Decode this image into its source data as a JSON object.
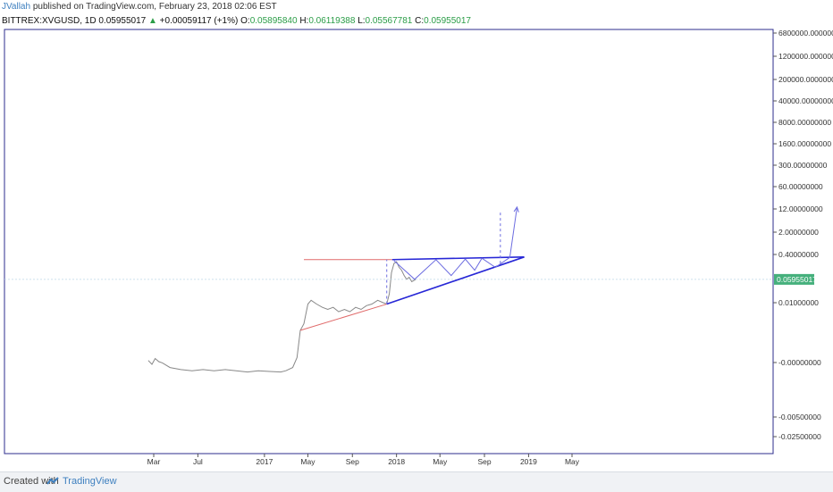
{
  "header": {
    "author": "JVallah",
    "published": "published on TradingView.com, February 23, 2018 02:06 EST",
    "symbol": "BITTREX:XVGUSD, 1D",
    "price": "0.05955017",
    "change": "+0.00059117 (+1%)",
    "o_label": "O:",
    "o_value": "0.05895840",
    "h_label": "H:",
    "h_value": "0.06119388",
    "l_label": "L:",
    "l_value": "0.05567781",
    "c_label": "C:",
    "c_value": "0.05955017"
  },
  "footer": {
    "created_with": "Created with",
    "brand": "TradingView"
  },
  "colors": {
    "price_line": "#888888",
    "triangle": "#2727d6",
    "projection": "#6c6ce0",
    "resistance": "#e06a6a",
    "current_badge": "#45b07c",
    "axis_text": "#333333"
  },
  "chart_data": {
    "type": "line",
    "title": "BITTREX:XVGUSD, 1D",
    "y_scale": "log",
    "current_price_label": "0.05955017",
    "y_tick_labels": [
      "6800000.00000000",
      "1200000.00000000",
      "200000.00000000",
      "40000.00000000",
      "8000.00000000",
      "1600.00000000",
      "300.00000000",
      "60.00000000",
      "12.00000000",
      "2.00000000",
      "0.40000000",
      "0.01000000",
      "-0.00000000",
      "-0.00500000",
      "-0.02500000"
    ],
    "x_tick_labels": [
      "Mar",
      "Jul",
      "2017",
      "May",
      "Sep",
      "2018",
      "May",
      "Sep",
      "2019",
      "May"
    ],
    "x_tick_dates": [
      "2016-03-01",
      "2016-07-01",
      "2017-01-01",
      "2017-05-01",
      "2017-09-01",
      "2018-01-01",
      "2018-05-01",
      "2018-09-01",
      "2019-01-01",
      "2019-05-01"
    ],
    "series": [
      {
        "values": [
          [
            "2016-02-15",
            0.00012
          ],
          [
            "2016-02-25",
            9e-05
          ],
          [
            "2016-03-05",
            0.00014
          ],
          [
            "2016-03-15",
            0.00011
          ],
          [
            "2016-03-25",
            0.0001
          ],
          [
            "2016-04-15",
            7e-05
          ],
          [
            "2016-05-15",
            6e-05
          ],
          [
            "2016-06-15",
            5.5e-05
          ],
          [
            "2016-07-15",
            6e-05
          ],
          [
            "2016-08-15",
            5.5e-05
          ],
          [
            "2016-09-15",
            6e-05
          ],
          [
            "2016-10-15",
            5.5e-05
          ],
          [
            "2016-11-15",
            5e-05
          ],
          [
            "2016-12-15",
            5.5e-05
          ],
          [
            "2017-01-15",
            5.2e-05
          ],
          [
            "2017-02-15",
            5e-05
          ],
          [
            "2017-03-01",
            5.5e-05
          ],
          [
            "2017-03-20",
            7e-05
          ],
          [
            "2017-04-01",
            0.00015
          ],
          [
            "2017-04-10",
            0.0012
          ],
          [
            "2017-04-20",
            0.002
          ],
          [
            "2017-05-01",
            0.009
          ],
          [
            "2017-05-10",
            0.012
          ],
          [
            "2017-05-25",
            0.009
          ],
          [
            "2017-06-10",
            0.007
          ],
          [
            "2017-06-25",
            0.006
          ],
          [
            "2017-07-10",
            0.007
          ],
          [
            "2017-07-25",
            0.005
          ],
          [
            "2017-08-10",
            0.006
          ],
          [
            "2017-08-25",
            0.005
          ],
          [
            "2017-09-10",
            0.007
          ],
          [
            "2017-09-25",
            0.006
          ],
          [
            "2017-10-10",
            0.008
          ],
          [
            "2017-10-25",
            0.009
          ],
          [
            "2017-11-10",
            0.012
          ],
          [
            "2017-11-25",
            0.01
          ],
          [
            "2017-12-05",
            0.009
          ],
          [
            "2017-12-12",
            0.02
          ],
          [
            "2017-12-18",
            0.1
          ],
          [
            "2017-12-25",
            0.2
          ],
          [
            "2018-01-01",
            0.23
          ],
          [
            "2018-01-08",
            0.15
          ],
          [
            "2018-01-15",
            0.12
          ],
          [
            "2018-01-22",
            0.08
          ],
          [
            "2018-01-29",
            0.06
          ],
          [
            "2018-02-05",
            0.07
          ],
          [
            "2018-02-12",
            0.05
          ],
          [
            "2018-02-23",
            0.05955
          ]
        ]
      }
    ],
    "annotations": {
      "resistance_line": {
        "x": [
          "2017-04-20",
          "2017-12-20"
        ],
        "y": [
          0.27,
          0.27
        ]
      },
      "red_support": {
        "x": [
          "2017-04-10",
          "2017-12-05"
        ],
        "y": [
          0.0012,
          0.009
        ]
      },
      "triangle_top": {
        "x": [
          "2017-12-20",
          "2018-12-20"
        ],
        "y": [
          0.27,
          0.33
        ]
      },
      "triangle_bottom": {
        "x": [
          "2017-12-05",
          "2018-12-20"
        ],
        "y": [
          0.009,
          0.33
        ]
      },
      "projection_path": {
        "x": [
          "2017-12-25",
          "2018-02-20",
          "2018-04-20",
          "2018-06-01",
          "2018-07-10",
          "2018-08-05",
          "2018-08-25",
          "2018-10-01",
          "2018-11-10",
          "2018-11-30"
        ],
        "y": [
          0.25,
          0.06,
          0.27,
          0.08,
          0.28,
          0.12,
          0.3,
          0.15,
          0.32,
          15
        ]
      },
      "vertical_dashed_1": {
        "x": [
          "2017-12-05",
          "2017-12-05"
        ],
        "y": [
          0.009,
          0.27
        ]
      },
      "vertical_dashed_2": {
        "x": [
          "2018-10-15",
          "2018-10-15"
        ],
        "y": [
          0.2,
          12
        ]
      }
    }
  }
}
